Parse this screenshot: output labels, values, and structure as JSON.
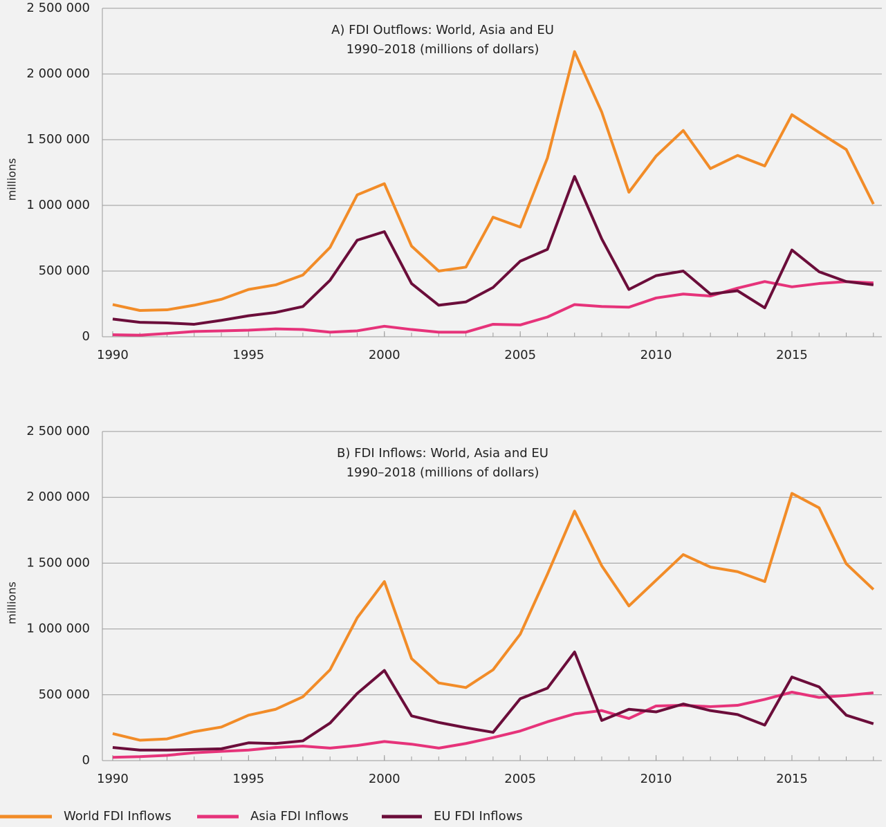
{
  "chart_data": [
    {
      "type": "line",
      "title": "A) FDI Outflows: World, Asia and EU",
      "subtitle": "1990–2018 (millions of dollars)",
      "y_label": "millions",
      "x": [
        1990,
        1991,
        1992,
        1993,
        1994,
        1995,
        1996,
        1997,
        1998,
        1999,
        2000,
        2001,
        2002,
        2003,
        2004,
        2005,
        2006,
        2007,
        2008,
        2009,
        2010,
        2011,
        2012,
        2013,
        2014,
        2015,
        2016,
        2017,
        2018
      ],
      "series": [
        {
          "color": "#f28c28",
          "values": [
            245000,
            200000,
            205000,
            240000,
            285000,
            360000,
            395000,
            470000,
            680000,
            1080000,
            1165000,
            690000,
            500000,
            530000,
            910000,
            835000,
            1360000,
            2170000,
            1710000,
            1100000,
            1375000,
            1570000,
            1280000,
            1380000,
            1300000,
            1690000,
            1555000,
            1425000,
            1010000
          ]
        },
        {
          "color": "#e6337a",
          "values": [
            15000,
            12000,
            25000,
            40000,
            45000,
            50000,
            60000,
            55000,
            35000,
            45000,
            80000,
            55000,
            35000,
            35000,
            95000,
            90000,
            150000,
            245000,
            230000,
            225000,
            295000,
            325000,
            310000,
            370000,
            420000,
            380000,
            405000,
            420000,
            410000
          ]
        },
        {
          "color": "#6b0d3a",
          "values": [
            135000,
            110000,
            105000,
            95000,
            125000,
            160000,
            185000,
            230000,
            430000,
            735000,
            800000,
            405000,
            240000,
            265000,
            375000,
            575000,
            665000,
            1220000,
            745000,
            360000,
            465000,
            500000,
            325000,
            350000,
            220000,
            660000,
            495000,
            420000,
            395000
          ]
        }
      ],
      "xlim": [
        1989.62,
        2018.31
      ],
      "xticks": [
        1990,
        1995,
        2000,
        2005,
        2010,
        2015
      ],
      "ylim": [
        0,
        2500000
      ],
      "yticks": [
        0,
        {
          "value": 500000,
          "label": "500 000"
        },
        {
          "value": 1000000,
          "label": "1 000 000"
        },
        {
          "value": 1500000,
          "label": "1 500 000"
        },
        {
          "value": 2000000,
          "label": "2 000 000"
        },
        {
          "value": 2500000,
          "label": "2 500 000"
        }
      ],
      "grid": true
    },
    {
      "type": "line",
      "title": "B) FDI Inflows: World, Asia and EU",
      "subtitle": "1990–2018 (millions of dollars)",
      "y_label": "millions",
      "x": [
        1990,
        1991,
        1992,
        1993,
        1994,
        1995,
        1996,
        1997,
        1998,
        1999,
        2000,
        2001,
        2002,
        2003,
        2004,
        2005,
        2006,
        2007,
        2008,
        2009,
        2010,
        2011,
        2012,
        2013,
        2014,
        2015,
        2016,
        2017,
        2018
      ],
      "series": [
        {
          "name": "World FDI Inflows",
          "color": "#f28c28",
          "values": [
            205000,
            155000,
            165000,
            220000,
            255000,
            345000,
            390000,
            485000,
            690000,
            1085000,
            1360000,
            775000,
            590000,
            555000,
            690000,
            960000,
            1415000,
            1895000,
            1480000,
            1175000,
            1370000,
            1565000,
            1470000,
            1435000,
            1360000,
            2030000,
            1920000,
            1495000,
            1300000
          ]
        },
        {
          "name": "Asia FDI Inflows",
          "color": "#e6337a",
          "values": [
            25000,
            30000,
            40000,
            60000,
            70000,
            80000,
            100000,
            110000,
            95000,
            115000,
            145000,
            125000,
            95000,
            130000,
            175000,
            225000,
            295000,
            355000,
            380000,
            320000,
            415000,
            420000,
            410000,
            420000,
            465000,
            520000,
            480000,
            495000,
            515000
          ]
        },
        {
          "name": "EU FDI Inflows",
          "color": "#6b0d3a",
          "values": [
            100000,
            80000,
            80000,
            85000,
            90000,
            135000,
            130000,
            150000,
            285000,
            510000,
            685000,
            340000,
            290000,
            250000,
            215000,
            470000,
            550000,
            825000,
            305000,
            390000,
            370000,
            430000,
            380000,
            350000,
            270000,
            635000,
            560000,
            345000,
            280000
          ]
        }
      ],
      "xlim": [
        1989.62,
        2018.31
      ],
      "xticks": [
        1990,
        1995,
        2000,
        2005,
        2010,
        2015
      ],
      "ylim": [
        0,
        2500000
      ],
      "yticks": [
        0,
        {
          "value": 500000,
          "label": "500 000"
        },
        {
          "value": 1000000,
          "label": "1 000 000"
        },
        {
          "value": 1500000,
          "label": "1 500 000"
        },
        {
          "value": 2000000,
          "label": "2 000 000"
        },
        {
          "value": 2500000,
          "label": "2 500 000"
        }
      ],
      "grid": true
    }
  ]
}
